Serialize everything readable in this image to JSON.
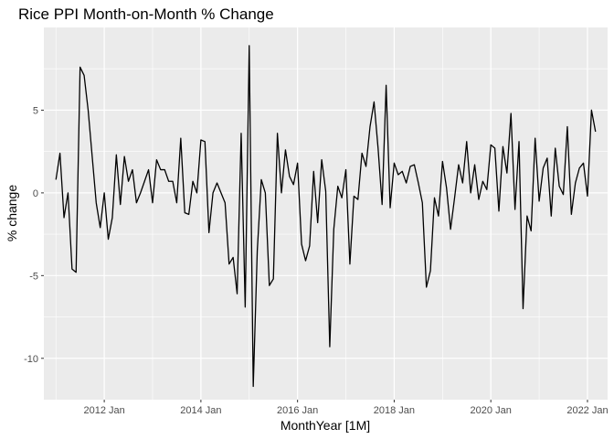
{
  "chart_data": {
    "type": "line",
    "title": "Rice PPI Month-on-Month % Change",
    "xlabel": "MonthYear [1M]",
    "ylabel": "% change",
    "x_start": "2011 Jan",
    "x_end": "2022 Mar",
    "xlim": [
      "2010 Oct",
      "2022 Jun"
    ],
    "ylim": [
      -12.5,
      10.0
    ],
    "x_ticks": [
      "2012 Jan",
      "2014 Jan",
      "2016 Jan",
      "2018 Jan",
      "2020 Jan",
      "2022 Jan"
    ],
    "y_ticks": [
      -10,
      -5,
      0,
      5
    ],
    "y_tick_labels": [
      "-10",
      "-5",
      "0",
      "5"
    ],
    "grid": true,
    "panel_background": "#EBEBEB",
    "grid_color": "#FFFFFF",
    "line_color": "#000000",
    "series": [
      {
        "values": [
          0.8,
          2.4,
          -1.5,
          0.0,
          -4.6,
          -4.8,
          7.6,
          7.1,
          5.0,
          2.2,
          -0.6,
          -2.1,
          0.0,
          -2.8,
          -1.5,
          2.3,
          -0.7,
          2.2,
          0.7,
          1.4,
          -0.6,
          0.0,
          0.7,
          1.4,
          -0.6,
          2.0,
          1.4,
          1.4,
          0.7,
          0.7,
          -0.6,
          3.3,
          -1.2,
          -1.3,
          0.7,
          0.0,
          3.2,
          3.1,
          -2.4,
          0.0,
          0.6,
          0.0,
          -0.6,
          -4.3,
          -3.9,
          -6.1,
          3.6,
          -6.9,
          8.9,
          -11.7,
          -3.5,
          0.8,
          0.0,
          -5.6,
          -5.2,
          3.6,
          0.0,
          2.6,
          1.0,
          0.5,
          1.8,
          -3.1,
          -4.1,
          -3.2,
          1.3,
          -1.8,
          2.0,
          0.1,
          -9.3,
          -2.2,
          0.4,
          -0.3,
          1.4,
          -4.3,
          -0.2,
          -0.4,
          2.4,
          1.6,
          4.0,
          5.5,
          2.7,
          -0.7,
          6.5,
          -0.9,
          1.8,
          1.1,
          1.3,
          0.6,
          1.6,
          1.7,
          0.6,
          -0.6,
          -5.7,
          -4.7,
          -0.3,
          -1.4,
          1.9,
          0.3,
          -2.2,
          -0.3,
          1.7,
          0.6,
          3.1,
          0.0,
          1.7,
          -0.4,
          0.7,
          0.2,
          2.9,
          2.7,
          -1.1,
          2.8,
          1.2,
          4.8,
          -1.0,
          3.1,
          -7.0,
          -1.4,
          -2.3,
          3.3,
          -0.5,
          1.5,
          2.1,
          -1.4,
          2.7,
          0.4,
          -0.1,
          4.0,
          -1.3,
          0.6,
          1.5,
          1.8,
          -0.2,
          5.0,
          3.7
        ]
      }
    ]
  }
}
